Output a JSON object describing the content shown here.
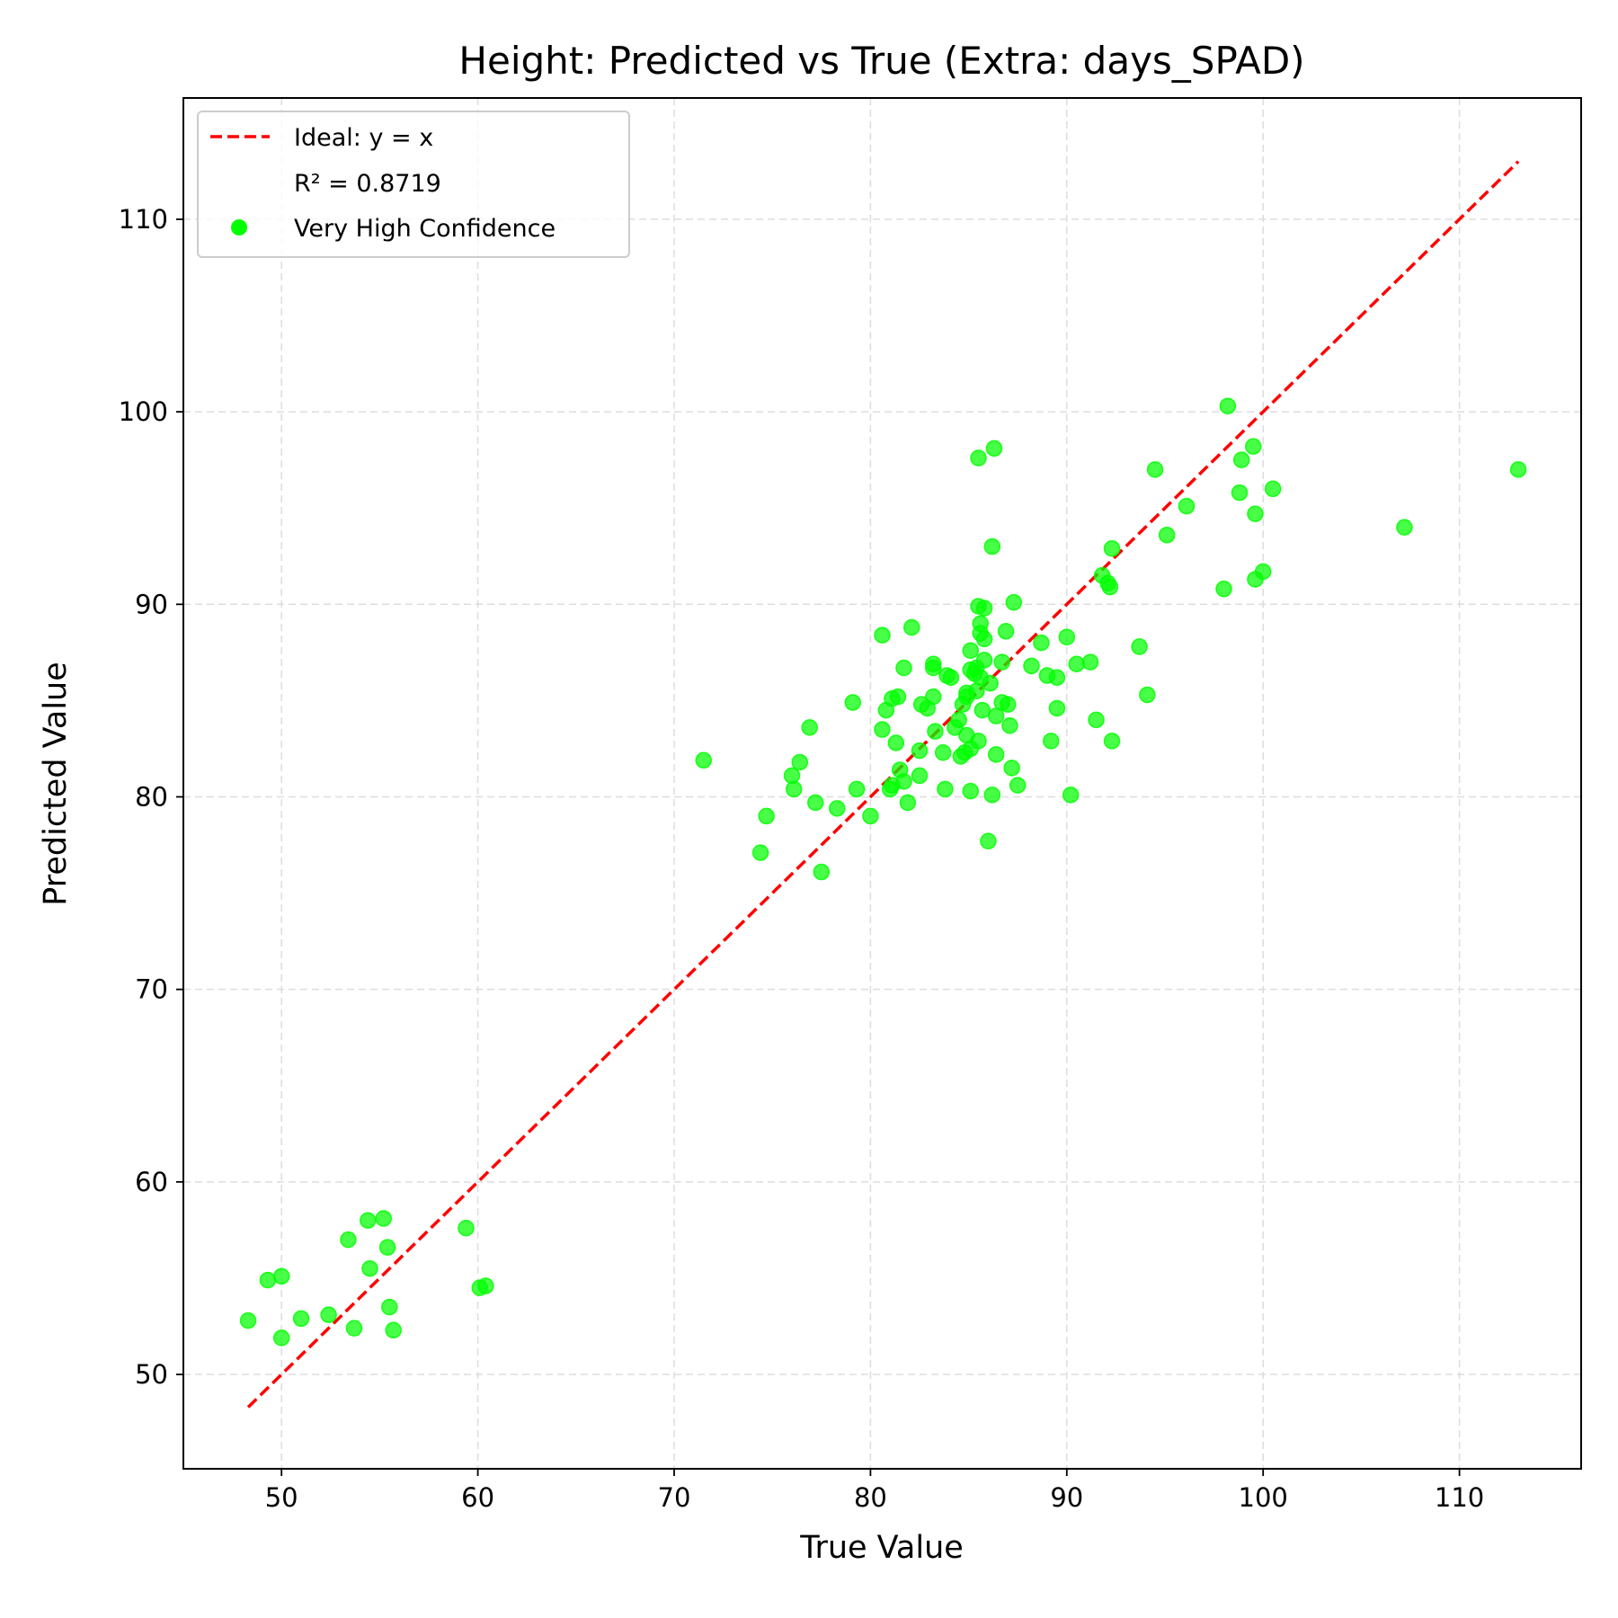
{
  "chart_data": {
    "type": "scatter",
    "title": "Height: Predicted vs True (Extra: days_SPAD)",
    "xlabel": "True Value",
    "ylabel": "Predicted Value",
    "xlim": [
      45,
      116.2
    ],
    "ylim": [
      45.1,
      116.3
    ],
    "xticks": [
      50,
      60,
      70,
      80,
      90,
      100,
      110
    ],
    "yticks": [
      50,
      60,
      70,
      80,
      90,
      100,
      110
    ],
    "grid": true,
    "legend_position": "top-left",
    "ideal_line": {
      "name": "Ideal: y = x",
      "color": "#ff0000",
      "style": "dashed",
      "x": [
        48.3,
        113
      ]
    },
    "annotation": "R² = 0.8719",
    "series": [
      {
        "name": "Very High Confidence",
        "color": "#00ff00",
        "points": [
          [
            48.3,
            52.8
          ],
          [
            49.3,
            54.9
          ],
          [
            50.0,
            55.1
          ],
          [
            50.0,
            51.9
          ],
          [
            51.0,
            52.9
          ],
          [
            52.4,
            53.1
          ],
          [
            53.4,
            57.0
          ],
          [
            53.7,
            52.4
          ],
          [
            54.4,
            58.0
          ],
          [
            54.5,
            55.5
          ],
          [
            55.2,
            58.1
          ],
          [
            55.4,
            56.6
          ],
          [
            55.5,
            53.5
          ],
          [
            55.7,
            52.3
          ],
          [
            59.4,
            57.6
          ],
          [
            60.1,
            54.5
          ],
          [
            60.4,
            54.6
          ],
          [
            71.5,
            81.9
          ],
          [
            74.4,
            77.1
          ],
          [
            74.7,
            79.0
          ],
          [
            76.0,
            81.1
          ],
          [
            76.1,
            80.4
          ],
          [
            76.4,
            81.8
          ],
          [
            76.9,
            83.6
          ],
          [
            77.2,
            79.7
          ],
          [
            77.5,
            76.1
          ],
          [
            78.3,
            79.4
          ],
          [
            79.1,
            84.9
          ],
          [
            79.3,
            80.4
          ],
          [
            80.0,
            79.0
          ],
          [
            80.6,
            88.4
          ],
          [
            80.6,
            83.5
          ],
          [
            80.8,
            84.5
          ],
          [
            81.0,
            80.4
          ],
          [
            81.1,
            80.6
          ],
          [
            81.1,
            85.1
          ],
          [
            81.3,
            82.8
          ],
          [
            81.4,
            85.2
          ],
          [
            81.5,
            81.4
          ],
          [
            81.7,
            86.7
          ],
          [
            81.7,
            80.8
          ],
          [
            81.9,
            79.7
          ],
          [
            82.1,
            88.8
          ],
          [
            82.5,
            81.1
          ],
          [
            82.5,
            82.4
          ],
          [
            82.6,
            84.8
          ],
          [
            82.9,
            84.6
          ],
          [
            83.2,
            86.9
          ],
          [
            83.2,
            86.7
          ],
          [
            83.2,
            85.2
          ],
          [
            83.3,
            83.4
          ],
          [
            83.7,
            82.3
          ],
          [
            83.8,
            80.4
          ],
          [
            83.9,
            86.3
          ],
          [
            84.1,
            86.2
          ],
          [
            84.3,
            83.6
          ],
          [
            84.5,
            84.0
          ],
          [
            84.6,
            82.1
          ],
          [
            84.7,
            84.8
          ],
          [
            84.8,
            82.3
          ],
          [
            84.9,
            85.4
          ],
          [
            84.9,
            85.2
          ],
          [
            84.9,
            83.2
          ],
          [
            85.1,
            86.6
          ],
          [
            85.1,
            87.6
          ],
          [
            85.1,
            82.5
          ],
          [
            85.1,
            80.3
          ],
          [
            85.3,
            86.4
          ],
          [
            85.4,
            86.7
          ],
          [
            85.4,
            85.5
          ],
          [
            85.5,
            97.6
          ],
          [
            85.5,
            89.9
          ],
          [
            85.6,
            89.0
          ],
          [
            85.6,
            88.5
          ],
          [
            85.6,
            86.2
          ],
          [
            85.7,
            84.5
          ],
          [
            85.8,
            89.8
          ],
          [
            85.8,
            88.2
          ],
          [
            85.8,
            87.1
          ],
          [
            85.5,
            82.9
          ],
          [
            86.0,
            77.7
          ],
          [
            86.1,
            85.9
          ],
          [
            86.2,
            80.1
          ],
          [
            86.2,
            93.0
          ],
          [
            86.3,
            98.1
          ],
          [
            86.4,
            82.2
          ],
          [
            86.4,
            84.2
          ],
          [
            86.7,
            87.0
          ],
          [
            86.7,
            84.9
          ],
          [
            86.9,
            88.6
          ],
          [
            87.0,
            84.8
          ],
          [
            87.1,
            83.7
          ],
          [
            87.2,
            81.5
          ],
          [
            87.3,
            90.1
          ],
          [
            87.5,
            80.6
          ],
          [
            88.2,
            86.8
          ],
          [
            88.7,
            88.0
          ],
          [
            89.0,
            86.3
          ],
          [
            89.2,
            82.9
          ],
          [
            89.5,
            86.2
          ],
          [
            89.5,
            84.6
          ],
          [
            90.0,
            88.3
          ],
          [
            90.2,
            80.1
          ],
          [
            90.5,
            86.9
          ],
          [
            91.2,
            87.0
          ],
          [
            91.5,
            84.0
          ],
          [
            91.8,
            91.5
          ],
          [
            92.1,
            91.1
          ],
          [
            92.2,
            90.9
          ],
          [
            92.3,
            92.9
          ],
          [
            92.3,
            82.9
          ],
          [
            93.7,
            87.8
          ],
          [
            94.1,
            85.3
          ],
          [
            94.5,
            97.0
          ],
          [
            95.1,
            93.6
          ],
          [
            96.1,
            95.1
          ],
          [
            98.0,
            90.8
          ],
          [
            98.2,
            100.3
          ],
          [
            98.8,
            95.8
          ],
          [
            98.9,
            97.5
          ],
          [
            99.5,
            98.2
          ],
          [
            99.6,
            94.7
          ],
          [
            99.6,
            91.3
          ],
          [
            100.0,
            91.7
          ],
          [
            100.5,
            96.0
          ],
          [
            107.2,
            94.0
          ],
          [
            113.0,
            97.0
          ]
        ]
      }
    ]
  }
}
